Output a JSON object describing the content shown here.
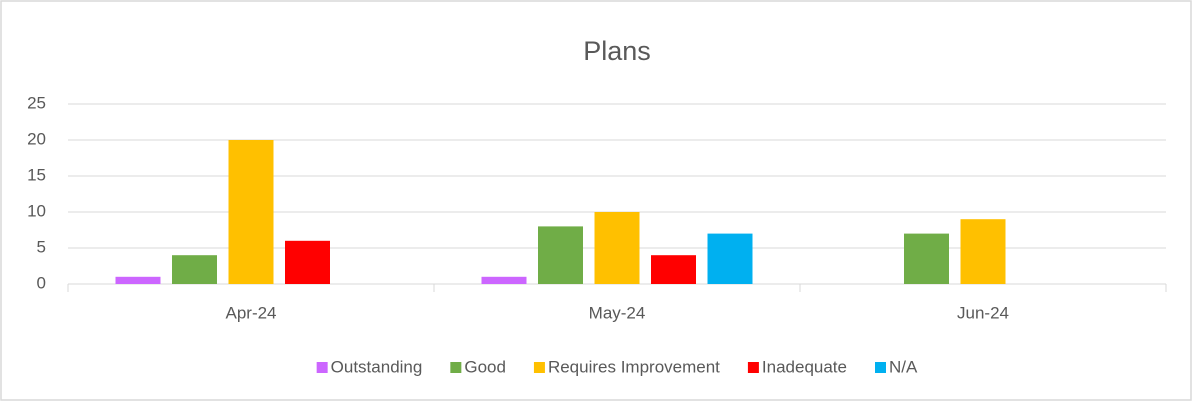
{
  "chart_data": {
    "type": "bar",
    "title": "Plans",
    "categories": [
      "Apr-24",
      "May-24",
      "Jun-24"
    ],
    "series": [
      {
        "name": "Outstanding",
        "color": "#cc66ff",
        "values": [
          1,
          1,
          0
        ]
      },
      {
        "name": "Good",
        "color": "#70ad47",
        "values": [
          4,
          8,
          7
        ]
      },
      {
        "name": "Requires Improvement",
        "color": "#ffc000",
        "values": [
          20,
          10,
          9
        ]
      },
      {
        "name": "Inadequate",
        "color": "#ff0000",
        "values": [
          6,
          4,
          0
        ]
      },
      {
        "name": "N/A",
        "color": "#00b0f0",
        "values": [
          0,
          7,
          0
        ]
      }
    ],
    "ylim": [
      0,
      25
    ],
    "yticks": [
      0,
      5,
      10,
      15,
      20,
      25
    ],
    "grid": true,
    "legend": "bottom"
  }
}
